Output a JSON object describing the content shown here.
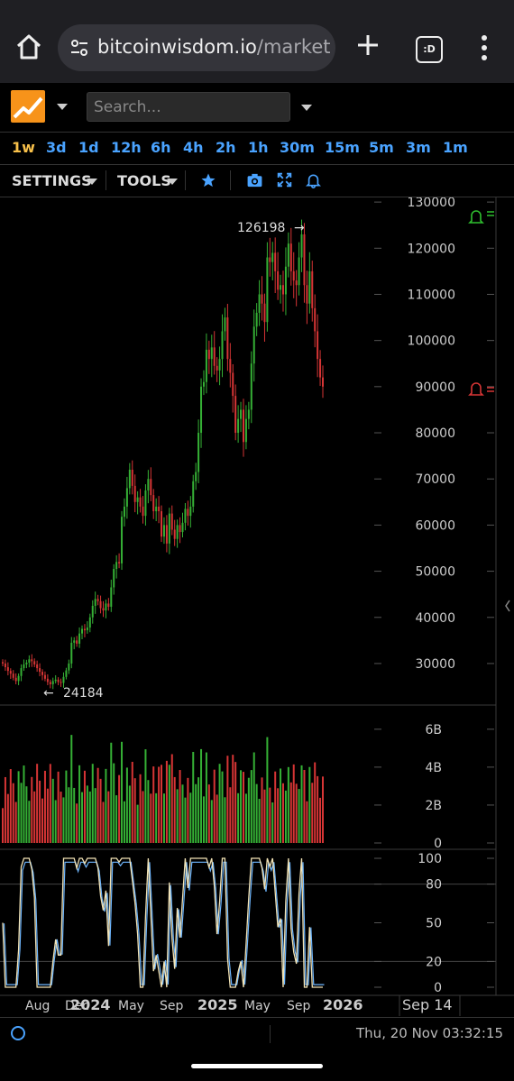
{
  "browser": {
    "url_domain": "bitcoinwisdom.io",
    "url_path": "/markets/",
    "tab_icon_text": ":D"
  },
  "header": {
    "search_placeholder": "Search..."
  },
  "timeframes": [
    {
      "label": "1w",
      "active": true
    },
    {
      "label": "3d"
    },
    {
      "label": "1d"
    },
    {
      "label": "12h"
    },
    {
      "label": "6h"
    },
    {
      "label": "4h"
    },
    {
      "label": "2h"
    },
    {
      "label": "1h"
    },
    {
      "label": "30m"
    },
    {
      "label": "15m"
    },
    {
      "label": "5m"
    },
    {
      "label": "3m"
    },
    {
      "label": "1m"
    }
  ],
  "toolbar": {
    "settings_label": "SETTINGS",
    "tools_label": "TOOLS"
  },
  "colors": {
    "up": "#35b035",
    "down": "#d63535",
    "accent": "#4aa3ff",
    "active": "#f7c04a"
  },
  "chart_data": [
    {
      "type": "candlestick",
      "title": "",
      "y_ticks": [
        30000,
        40000,
        50000,
        60000,
        70000,
        80000,
        90000,
        100000,
        110000,
        120000,
        130000
      ],
      "ylim": [
        21000,
        131000
      ],
      "annotations": [
        {
          "text": "126198",
          "arrow": "→"
        },
        {
          "text": "24184",
          "arrow": "←"
        }
      ],
      "alerts": [
        {
          "price": 130000,
          "color": "green"
        },
        {
          "price": 90000,
          "color": "red"
        }
      ],
      "close": [
        30000,
        29200,
        28400,
        27800,
        26900,
        26200,
        27300,
        29000,
        29800,
        30200,
        30900,
        30500,
        29800,
        29000,
        28200,
        27500,
        26700,
        26000,
        25500,
        26200,
        26500,
        26000,
        25800,
        27100,
        28500,
        30000,
        34500,
        35000,
        34300,
        36500,
        37500,
        37200,
        37800,
        40000,
        42500,
        44000,
        43500,
        42000,
        41500,
        43000,
        42300,
        46500,
        50500,
        52000,
        51700,
        61800,
        64000,
        68000,
        72000,
        68500,
        65000,
        66000,
        64000,
        62000,
        67500,
        70000,
        66500,
        63000,
        64000,
        63000,
        57500,
        60000,
        56000,
        62500,
        59000,
        57000,
        60000,
        58500,
        60500,
        63500,
        62000,
        64000,
        69500,
        71500,
        80000,
        90000,
        91000,
        98000,
        96000,
        98500,
        94500,
        93500,
        96000,
        102000,
        105000,
        96000,
        93000,
        88000,
        80000,
        83000,
        85000,
        78000,
        83000,
        85000,
        95000,
        103000,
        106000,
        110000,
        108000,
        104000,
        118000,
        117000,
        119000,
        115000,
        111000,
        112000,
        110000,
        116000,
        121000,
        115000,
        113000,
        112000,
        118000,
        123000,
        112000,
        108000,
        115000,
        107000,
        102000,
        96000,
        92000,
        90000
      ],
      "ath": 126198,
      "atl": 24184
    },
    {
      "type": "bar",
      "title": "",
      "y_ticks_labels": [
        "6B",
        "4B",
        "2B",
        "0"
      ],
      "y_ticks": [
        6,
        4,
        2,
        0
      ],
      "unit": "B"
    },
    {
      "type": "line",
      "title": "",
      "y_ticks": [
        100,
        80,
        50,
        20,
        0
      ],
      "reference_lines": [
        80,
        20
      ]
    }
  ],
  "x_axis": {
    "labels": [
      "Aug",
      "Dec",
      "2024",
      "May",
      "Sep",
      "2025",
      "May",
      "Sep",
      "2026"
    ],
    "cursor_label": "Sep 14"
  },
  "status": {
    "datetime": "Thu, 20 Nov 03:32:15"
  }
}
